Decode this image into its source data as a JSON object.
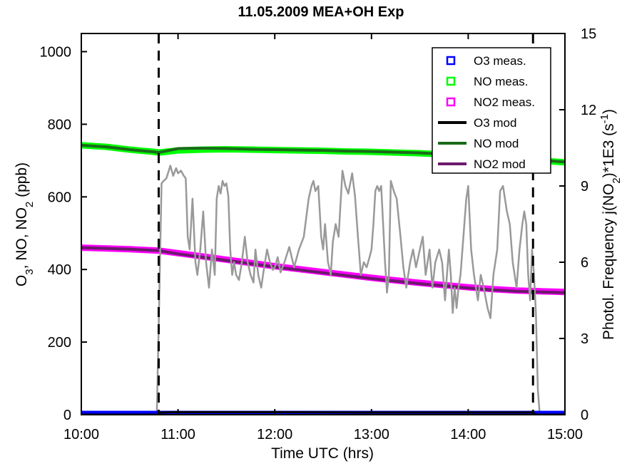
{
  "chart_data": {
    "type": "line",
    "title": "11.05.2009 MEA+OH Exp",
    "xlabel": "Time UTC (hrs)",
    "ylabel_left": {
      "base": "O",
      "sub1": "3",
      "mid": ", NO, NO",
      "sub2": "2",
      "end": " (ppb)"
    },
    "ylabel_right": {
      "base": "Photol. Frequency j(NO",
      "sub": "2",
      "mid": ")*1E3 (s",
      "sup": "-1",
      "end": ")"
    },
    "xlim": [
      10,
      15
    ],
    "ylim_left": [
      0,
      1050
    ],
    "ylim_right": [
      0,
      15
    ],
    "x_ticks": [
      10,
      11,
      12,
      13,
      14,
      15
    ],
    "x_tick_labels": [
      "10:00",
      "11:00",
      "12:00",
      "13:00",
      "14:00",
      "15:00"
    ],
    "y_left_ticks": [
      0,
      200,
      400,
      600,
      800,
      1000
    ],
    "y_left_tick_labels": [
      "0",
      "200",
      "400",
      "600",
      "800",
      "1000"
    ],
    "y_right_ticks": [
      0,
      3,
      6,
      9,
      12,
      15
    ],
    "y_right_tick_labels": [
      "0",
      "3",
      "6",
      "9",
      "12",
      "15"
    ],
    "vlines": [
      10.8,
      14.67
    ],
    "grid": false,
    "legend_position": "top-right",
    "legend": [
      {
        "label": "O3 meas.",
        "kind": "marker",
        "color": "#0000ff"
      },
      {
        "label": "NO meas.",
        "kind": "marker",
        "color": "#00ff00"
      },
      {
        "label": "NO2 meas.",
        "kind": "marker",
        "color": "#ff00ff"
      },
      {
        "label": "O3 mod",
        "kind": "line",
        "color": "#000000"
      },
      {
        "label": "NO mod",
        "kind": "line",
        "color": "#1a6b1a"
      },
      {
        "label": "NO2 mod",
        "kind": "line",
        "color": "#6b1a6b"
      }
    ],
    "series": [
      {
        "name": "O3 meas.",
        "axis": "left",
        "style": "marker",
        "color": "#0000ff",
        "x": [
          10,
          10.5,
          11,
          11.5,
          12,
          12.5,
          13,
          13.5,
          14,
          14.5,
          15
        ],
        "y": [
          2,
          2,
          2,
          2,
          2,
          2,
          2,
          2,
          2,
          2,
          2
        ]
      },
      {
        "name": "NO meas.",
        "axis": "left",
        "style": "marker",
        "color": "#00ff00",
        "x": [
          10,
          10.25,
          10.5,
          10.75,
          10.8,
          11,
          11.25,
          11.5,
          11.75,
          12,
          12.25,
          12.5,
          12.75,
          13,
          13.25,
          13.5,
          13.75,
          14,
          14.25,
          14.5,
          14.75,
          15
        ],
        "y": [
          742,
          738,
          730,
          724,
          722,
          728,
          730,
          731,
          730,
          729,
          728,
          727,
          725,
          724,
          722,
          720,
          717,
          713,
          709,
          704,
          700,
          695
        ]
      },
      {
        "name": "NO2 meas.",
        "axis": "left",
        "style": "marker",
        "color": "#ff00ff",
        "x": [
          10,
          10.25,
          10.5,
          10.8,
          11,
          11.25,
          11.5,
          11.75,
          12,
          12.25,
          12.5,
          12.75,
          13,
          13.25,
          13.5,
          13.75,
          14,
          14.25,
          14.5,
          14.75,
          15
        ],
        "y": [
          460,
          458,
          456,
          452,
          445,
          436,
          427,
          418,
          409,
          401,
          393,
          385,
          377,
          370,
          363,
          357,
          351,
          346,
          342,
          340,
          338
        ]
      },
      {
        "name": "O3 mod",
        "axis": "left",
        "style": "line",
        "color": "#000000",
        "x": [
          10,
          10.8,
          10.82,
          11,
          12,
          13,
          14,
          14.67,
          14.7,
          15
        ],
        "y": [
          0,
          0,
          6,
          7,
          7,
          6,
          6,
          6,
          0,
          0
        ]
      },
      {
        "name": "NO mod",
        "axis": "left",
        "style": "line",
        "color": "#1a6b1a",
        "x": [
          10,
          10.25,
          10.5,
          10.75,
          10.8,
          11,
          11.25,
          11.5,
          11.75,
          12,
          12.25,
          12.5,
          12.75,
          13,
          13.25,
          13.5,
          13.75,
          14,
          14.25,
          14.5,
          14.75,
          15
        ],
        "y": [
          742,
          738,
          730,
          724,
          722,
          733,
          734,
          733,
          731,
          730,
          729,
          728,
          726,
          725,
          723,
          721,
          718,
          714,
          710,
          705,
          701,
          696
        ]
      },
      {
        "name": "NO2 mod",
        "axis": "left",
        "style": "line",
        "color": "#6b1a6b",
        "x": [
          10,
          10.25,
          10.5,
          10.8,
          11,
          11.25,
          11.5,
          11.75,
          12,
          12.25,
          12.5,
          12.75,
          13,
          13.25,
          13.5,
          13.75,
          14,
          14.25,
          14.5,
          14.75,
          15
        ],
        "y": [
          460,
          458,
          456,
          452,
          443,
          434,
          425,
          416,
          407,
          399,
          391,
          383,
          375,
          368,
          361,
          355,
          349,
          344,
          340,
          338,
          336
        ]
      },
      {
        "name": "jNO2",
        "axis": "right",
        "style": "line",
        "color": "#999999",
        "x": [
          10,
          10.78,
          10.8,
          10.83,
          10.85,
          10.88,
          10.92,
          10.95,
          10.98,
          11.0,
          11.03,
          11.06,
          11.08,
          11.1,
          11.12,
          11.15,
          11.18,
          11.2,
          11.23,
          11.26,
          11.29,
          11.32,
          11.35,
          11.38,
          11.4,
          11.42,
          11.44,
          11.46,
          11.48,
          11.5,
          11.52,
          11.54,
          11.56,
          11.58,
          11.6,
          11.63,
          11.66,
          11.69,
          11.72,
          11.75,
          11.78,
          11.8,
          11.83,
          11.86,
          11.89,
          11.92,
          11.95,
          11.98,
          12.0,
          12.03,
          12.06,
          12.1,
          12.15,
          12.2,
          12.25,
          12.3,
          12.35,
          12.38,
          12.4,
          12.42,
          12.45,
          12.48,
          12.5,
          12.52,
          12.55,
          12.58,
          12.6,
          12.63,
          12.66,
          12.7,
          12.73,
          12.76,
          12.8,
          12.83,
          12.86,
          12.89,
          12.92,
          12.95,
          12.98,
          13.0,
          13.02,
          13.04,
          13.06,
          13.08,
          13.1,
          13.12,
          13.14,
          13.16,
          13.18,
          13.2,
          13.23,
          13.26,
          13.3,
          13.33,
          13.36,
          13.4,
          13.43,
          13.46,
          13.5,
          13.53,
          13.56,
          13.6,
          13.63,
          13.66,
          13.7,
          13.73,
          13.76,
          13.8,
          13.82,
          13.84,
          13.86,
          13.88,
          13.9,
          13.92,
          13.94,
          13.96,
          13.98,
          14.0,
          14.03,
          14.06,
          14.1,
          14.13,
          14.16,
          14.2,
          14.23,
          14.26,
          14.3,
          14.33,
          14.36,
          14.4,
          14.43,
          14.46,
          14.5,
          14.53,
          14.56,
          14.58,
          14.6,
          14.62,
          14.64,
          14.66,
          14.68,
          14.7,
          14.72,
          14.74,
          15
        ],
        "y": [
          0,
          0,
          3.5,
          9.1,
          9.2,
          9.3,
          9.8,
          9.4,
          9.7,
          9.5,
          9.6,
          9.4,
          9.3,
          7.0,
          6.5,
          8.5,
          6.0,
          5.5,
          6.5,
          8.0,
          6.0,
          5.0,
          6.5,
          5.5,
          8.5,
          9.0,
          8.7,
          9.2,
          9.0,
          9.1,
          8.6,
          6.5,
          5.5,
          6.0,
          5.5,
          5.3,
          6.0,
          7.0,
          6.0,
          5.5,
          5.2,
          6.5,
          5.5,
          5.0,
          5.8,
          6.5,
          6.0,
          5.7,
          5.8,
          6.2,
          5.6,
          6.0,
          6.6,
          5.8,
          6.5,
          7.0,
          8.5,
          9.0,
          9.2,
          8.8,
          9.0,
          7.0,
          6.5,
          7.5,
          6.0,
          5.5,
          6.8,
          7.5,
          7.0,
          9.6,
          9.0,
          8.7,
          9.5,
          8.6,
          7.0,
          5.5,
          6.0,
          5.8,
          6.2,
          6.5,
          7.5,
          8.8,
          9.0,
          8.8,
          9.0,
          7.5,
          6.0,
          4.8,
          5.5,
          9.2,
          8.8,
          8.5,
          7.0,
          5.8,
          5.0,
          6.0,
          6.5,
          5.8,
          6.5,
          7.0,
          5.5,
          6.5,
          5.0,
          6.0,
          6.5,
          6.0,
          4.5,
          6.5,
          5.5,
          4.0,
          5.0,
          4.2,
          5.0,
          5.5,
          6.5,
          7.5,
          8.5,
          9.0,
          6.5,
          5.5,
          4.5,
          5.5,
          5.0,
          4.2,
          3.8,
          5.5,
          6.5,
          8.8,
          9.0,
          8.0,
          7.5,
          6.0,
          5.0,
          6.5,
          7.5,
          8.0,
          7.5,
          5.5,
          4.5,
          6.5,
          5.5,
          4.0,
          1.0,
          0,
          0
        ]
      }
    ]
  }
}
